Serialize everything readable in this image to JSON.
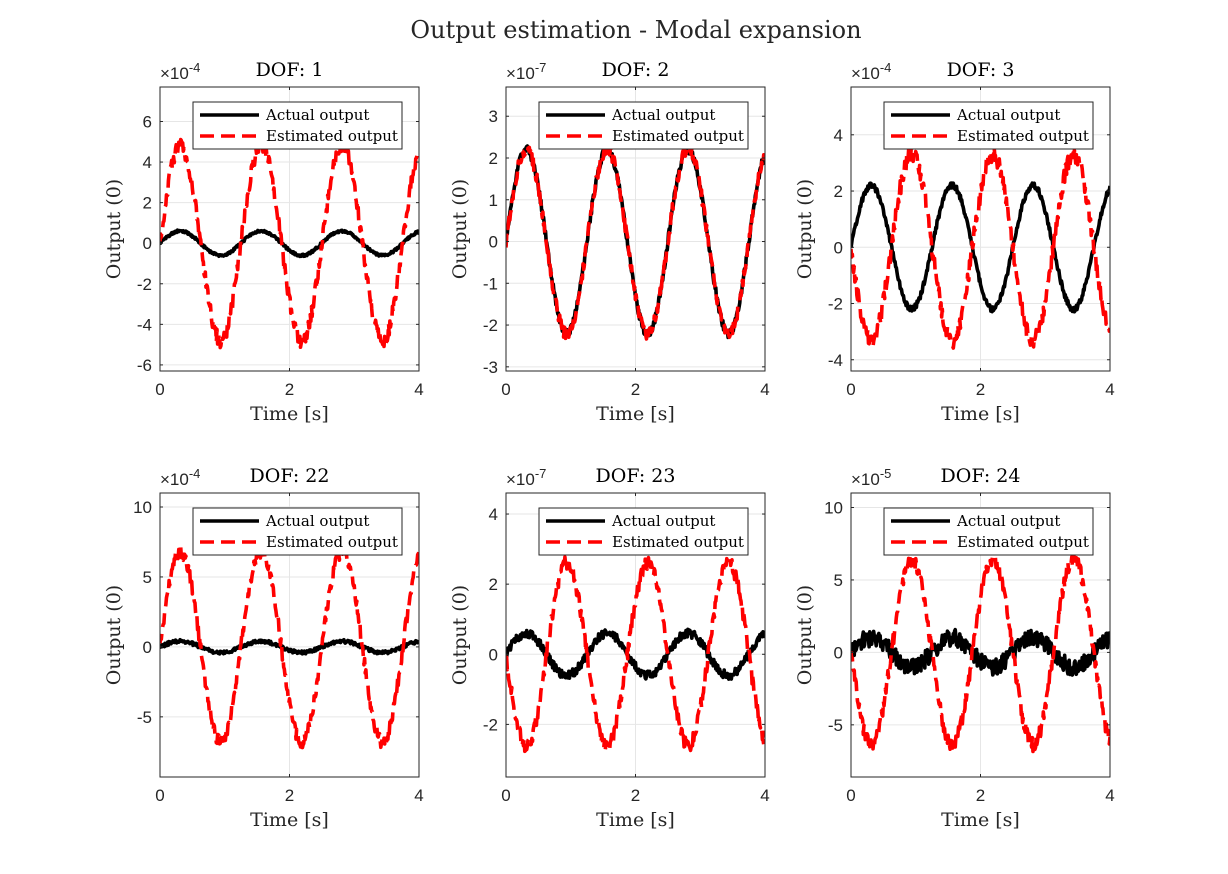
{
  "figure": {
    "title": "Output estimation - Modal expansion",
    "colors": {
      "actual": "#000000",
      "estimated": "#ff0000",
      "grid": "#e6e6e6",
      "axis": "#262626"
    }
  },
  "chart_data": [
    {
      "type": "line",
      "title": "DOF: 1",
      "xlabel": "Time [s]",
      "ylabel": "Output (0)",
      "xlim": [
        0,
        4
      ],
      "ylim": [
        -6.3,
        7.7
      ],
      "exponent": "-4",
      "xticks": [
        0,
        2,
        4
      ],
      "yticks": [
        -6,
        -4,
        -2,
        0,
        2,
        4,
        6
      ],
      "grid": true,
      "legend_position": "top-right",
      "series": [
        {
          "name": "Actual output",
          "style": "solid",
          "amp": 0.6,
          "freq": 0.8,
          "phase": 0,
          "noise": 0.06
        },
        {
          "name": "Estimated output",
          "style": "dashed",
          "amp": 4.8,
          "freq": 0.8,
          "phase": 0,
          "noise": 0.35
        }
      ]
    },
    {
      "type": "line",
      "title": "DOF: 2",
      "xlabel": "Time [s]",
      "ylabel": "Output (0)",
      "xlim": [
        0,
        4
      ],
      "ylim": [
        -3.1,
        3.7
      ],
      "exponent": "-7",
      "xticks": [
        0,
        2,
        4
      ],
      "yticks": [
        -3,
        -2,
        -1,
        0,
        1,
        2,
        3
      ],
      "grid": true,
      "legend_position": "top-right",
      "series": [
        {
          "name": "Actual output",
          "style": "solid",
          "amp": 2.2,
          "freq": 0.8,
          "phase": 0,
          "noise": 0.1
        },
        {
          "name": "Estimated output",
          "style": "dashed",
          "amp": 2.2,
          "freq": 0.8,
          "phase": 0,
          "noise": 0.15
        }
      ]
    },
    {
      "type": "line",
      "title": "DOF: 3",
      "xlabel": "Time [s]",
      "ylabel": "Output (0)",
      "xlim": [
        0,
        4
      ],
      "ylim": [
        -4.4,
        5.7
      ],
      "exponent": "-4",
      "xticks": [
        0,
        2,
        4
      ],
      "yticks": [
        -4,
        -2,
        0,
        2,
        4
      ],
      "grid": true,
      "legend_position": "top-right",
      "series": [
        {
          "name": "Actual output",
          "style": "solid",
          "amp": 2.2,
          "freq": 0.8,
          "phase": 0,
          "noise": 0.1
        },
        {
          "name": "Estimated output",
          "style": "dashed",
          "amp": 3.3,
          "freq": 0.8,
          "phase": 180,
          "noise": 0.3
        }
      ]
    },
    {
      "type": "line",
      "title": "DOF: 22",
      "xlabel": "Time [s]",
      "ylabel": "Output (0)",
      "xlim": [
        0,
        4
      ],
      "ylim": [
        -9.3,
        11
      ],
      "exponent": "-4",
      "xticks": [
        0,
        2,
        4
      ],
      "yticks": [
        -5,
        0,
        5,
        10
      ],
      "grid": true,
      "legend_position": "top-right",
      "series": [
        {
          "name": "Actual output",
          "style": "solid",
          "amp": 0.4,
          "freq": 0.8,
          "phase": 0,
          "noise": 0.12
        },
        {
          "name": "Estimated output",
          "style": "dashed",
          "amp": 6.8,
          "freq": 0.8,
          "phase": 0,
          "noise": 0.45
        }
      ]
    },
    {
      "type": "line",
      "title": "DOF: 23",
      "xlabel": "Time [s]",
      "ylabel": "Output (0)",
      "xlim": [
        0,
        4
      ],
      "ylim": [
        -3.5,
        4.6
      ],
      "exponent": "-7",
      "xticks": [
        0,
        2,
        4
      ],
      "yticks": [
        -2,
        0,
        2,
        4
      ],
      "grid": true,
      "legend_position": "top-right",
      "series": [
        {
          "name": "Actual output",
          "style": "solid",
          "amp": 0.6,
          "freq": 0.8,
          "phase": 0,
          "noise": 0.12
        },
        {
          "name": "Estimated output",
          "style": "dashed",
          "amp": 2.6,
          "freq": 0.8,
          "phase": 180,
          "noise": 0.2
        }
      ]
    },
    {
      "type": "line",
      "title": "DOF: 24",
      "xlabel": "Time [s]",
      "ylabel": "Output (0)",
      "xlim": [
        0,
        4
      ],
      "ylim": [
        -8.6,
        11
      ],
      "exponent": "-5",
      "xticks": [
        0,
        2,
        4
      ],
      "yticks": [
        -5,
        0,
        5,
        10
      ],
      "grid": true,
      "legend_position": "top-right",
      "series": [
        {
          "name": "Actual output",
          "style": "solid",
          "amp": 1.0,
          "freq": 0.8,
          "phase": 0,
          "noise": 0.6
        },
        {
          "name": "Estimated output",
          "style": "dashed",
          "amp": 6.4,
          "freq": 0.8,
          "phase": 180,
          "noise": 0.5
        }
      ]
    }
  ]
}
